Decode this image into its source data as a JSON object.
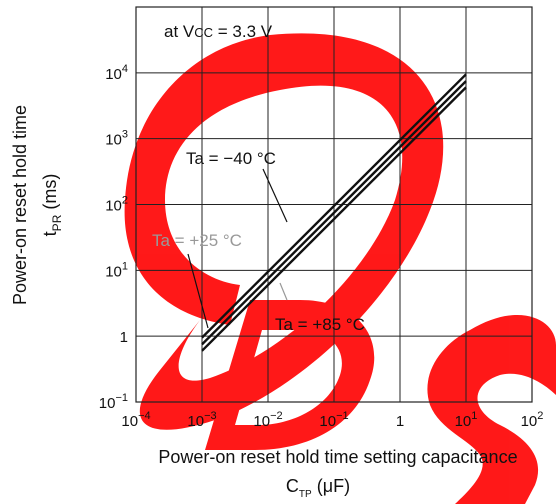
{
  "chart_data": {
    "type": "line",
    "xscale": "log",
    "yscale": "log",
    "xlim": [
      0.0001,
      100
    ],
    "ylim": [
      0.1,
      100000
    ],
    "grid": true,
    "condition": "at VCC = 3.3 V",
    "xlabel": {
      "line1": "Power-on reset hold time setting capacitance",
      "line2": {
        "main": "C",
        "sub": "TP",
        "rest": " (μF)"
      }
    },
    "ylabel": {
      "line1": "Power-on reset hold time",
      "line2": {
        "main": "t",
        "sub": "PR",
        "rest": " (ms)"
      }
    },
    "x_ticks": [
      {
        "value": 0.0001,
        "base": "10",
        "exp": "−4"
      },
      {
        "value": 0.001,
        "base": "10",
        "exp": "−3"
      },
      {
        "value": 0.01,
        "base": "10",
        "exp": "−2"
      },
      {
        "value": 0.1,
        "base": "10",
        "exp": "−1"
      },
      {
        "value": 1,
        "base": "1",
        "exp": ""
      },
      {
        "value": 10,
        "base": "10",
        "exp": "1"
      },
      {
        "value": 100,
        "base": "10",
        "exp": "2"
      }
    ],
    "y_ticks": [
      {
        "value": 0.1,
        "base": "10",
        "exp": "−1"
      },
      {
        "value": 1,
        "base": "1",
        "exp": ""
      },
      {
        "value": 10,
        "base": "10",
        "exp": "1"
      },
      {
        "value": 100,
        "base": "10",
        "exp": "2"
      },
      {
        "value": 1000,
        "base": "10",
        "exp": "3"
      },
      {
        "value": 10000,
        "base": "10",
        "exp": "4"
      }
    ],
    "series": [
      {
        "name": "Ta = −40 °C",
        "x": [
          0.001,
          10
        ],
        "y": [
          0.95,
          9500
        ]
      },
      {
        "name": "Ta = +25 °C",
        "x": [
          0.001,
          10
        ],
        "y": [
          0.75,
          7500
        ]
      },
      {
        "name": "Ta = +85 °C",
        "x": [
          0.001,
          10
        ],
        "y": [
          0.6,
          6000
        ]
      }
    ],
    "annotations": [
      {
        "text": "Ta = −40 °C",
        "color": "#111111",
        "series": 0
      },
      {
        "text": "Ta = +25 °C",
        "color": "#999999",
        "series": 1
      },
      {
        "text": "Ta = +85 °C",
        "color": "#111111",
        "series": 2
      }
    ]
  },
  "colors": {
    "line": "#111111",
    "grid": "#222222",
    "watermark": "#ff0000"
  }
}
